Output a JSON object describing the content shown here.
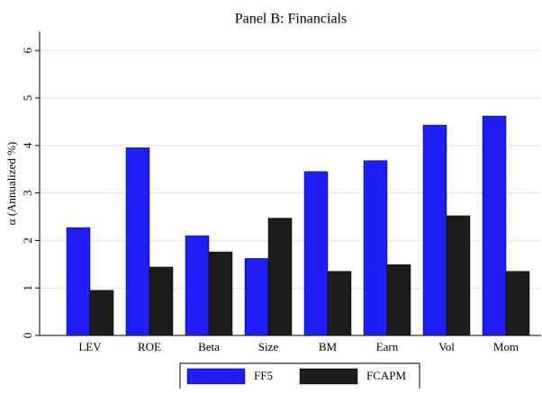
{
  "chart_data": {
    "type": "bar",
    "title": "Panel B: Financials",
    "y_label": "α (Annualized %)",
    "categories": [
      "LEV",
      "ROE",
      "Beta",
      "Size",
      "BM",
      "Earn",
      "Vol",
      "Mom"
    ],
    "series": [
      {
        "name": "FF5",
        "color": "#1f1ff5",
        "values": [
          2.27,
          3.95,
          2.1,
          1.62,
          3.45,
          3.68,
          4.43,
          4.62
        ]
      },
      {
        "name": "FCAPM",
        "color": "#1c1c1c",
        "values": [
          0.95,
          1.44,
          1.76,
          2.47,
          1.35,
          1.49,
          2.52,
          1.35
        ]
      }
    ],
    "ylim": [
      0,
      6.4
    ],
    "yticks": [
      0,
      1,
      2,
      3,
      4,
      5,
      6
    ],
    "grid": true
  }
}
